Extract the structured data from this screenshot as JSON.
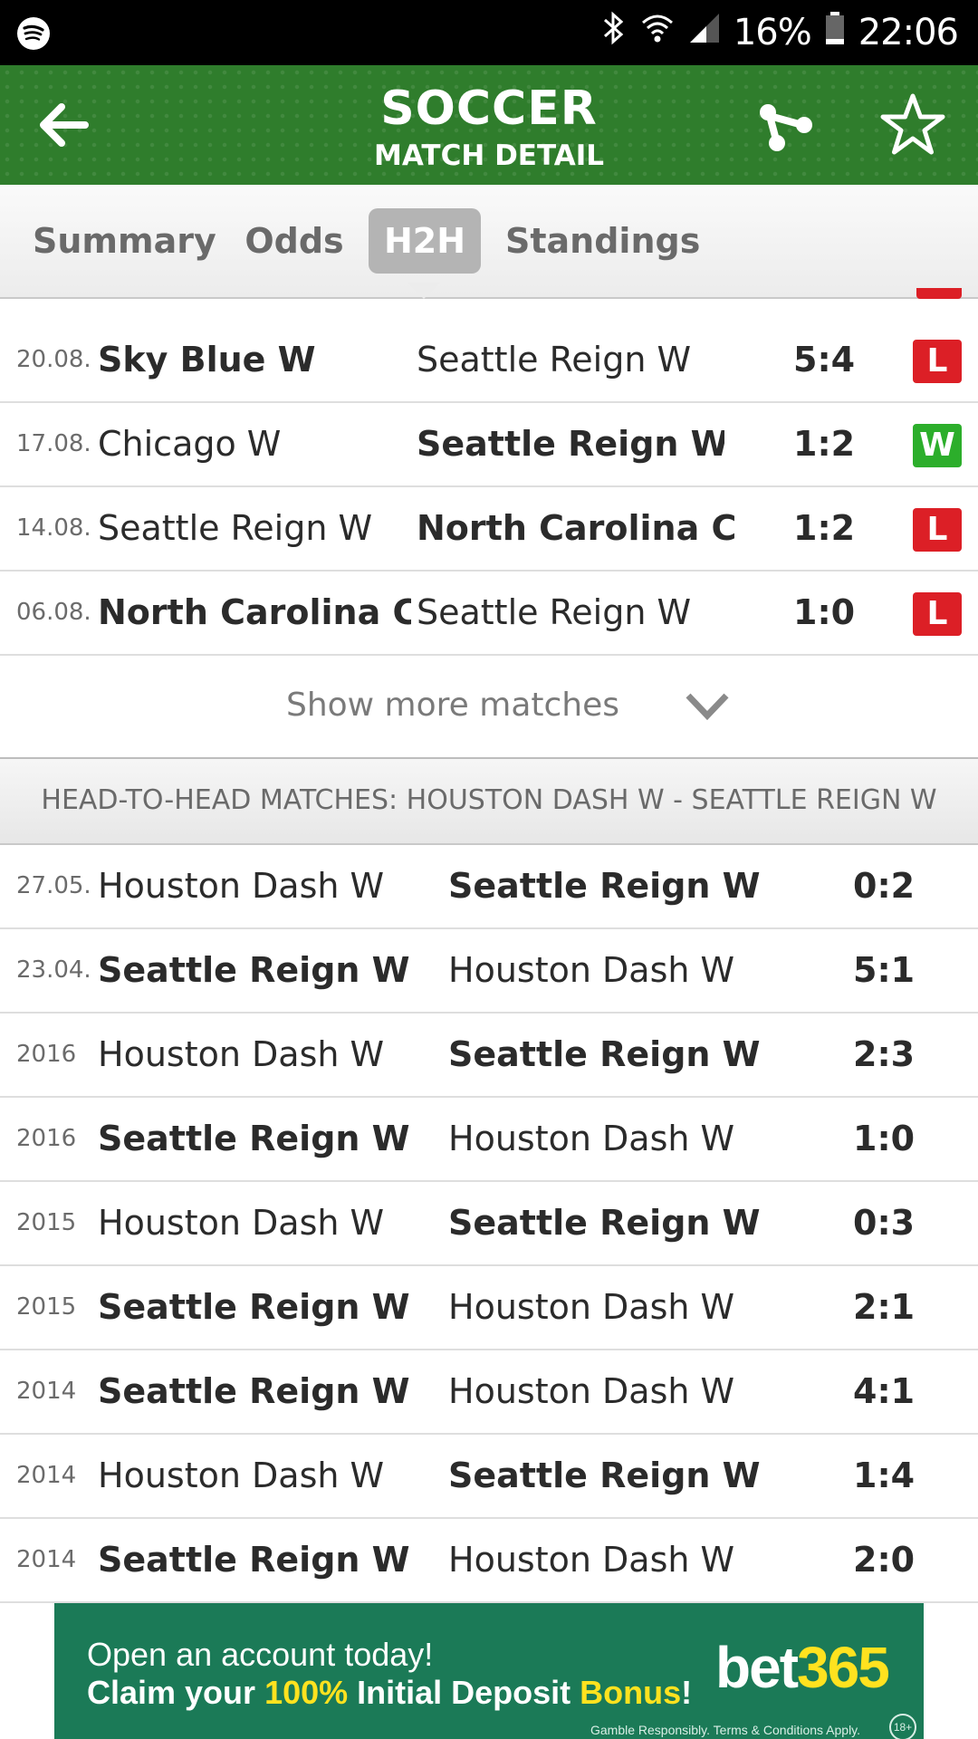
{
  "status_bar": {
    "battery": "16%",
    "time": "22:06"
  },
  "header": {
    "title": "SOCCER",
    "subtitle": "MATCH DETAIL"
  },
  "tabs": [
    {
      "label": "Summary",
      "active": false
    },
    {
      "label": "Odds",
      "active": false
    },
    {
      "label": "H2H",
      "active": true
    },
    {
      "label": "Standings",
      "active": false
    }
  ],
  "last_matches": [
    {
      "date": "20.08.",
      "home": "Sky Blue W",
      "away": "Seattle Reign W",
      "score": "5:4",
      "result": "L"
    },
    {
      "date": "17.08.",
      "home": "Chicago W",
      "away": "Seattle Reign W",
      "score": "1:2",
      "result": "W"
    },
    {
      "date": "14.08.",
      "home": "Seattle Reign W",
      "away": "North Carolina C...",
      "score": "1:2",
      "result": "L"
    },
    {
      "date": "06.08.",
      "home": "North Carolina C...",
      "away": "Seattle Reign W",
      "score": "1:0",
      "result": "L"
    }
  ],
  "show_more": {
    "label": "Show more matches"
  },
  "h2h_section": {
    "title": "HEAD-TO-HEAD MATCHES: HOUSTON DASH W - SEATTLE REIGN W"
  },
  "h2h_matches": [
    {
      "date": "27.05.",
      "home": "Houston Dash W",
      "away": "Seattle Reign W",
      "score": "0:2"
    },
    {
      "date": "23.04.",
      "home": "Seattle Reign W",
      "away": "Houston Dash W",
      "score": "5:1"
    },
    {
      "date": "2016",
      "home": "Houston Dash W",
      "away": "Seattle Reign W",
      "score": "2:3"
    },
    {
      "date": "2016",
      "home": "Seattle Reign W",
      "away": "Houston Dash W",
      "score": "1:0"
    },
    {
      "date": "2015",
      "home": "Houston Dash W",
      "away": "Seattle Reign W",
      "score": "0:3"
    },
    {
      "date": "2015",
      "home": "Seattle Reign W",
      "away": "Houston Dash W",
      "score": "2:1"
    },
    {
      "date": "2014",
      "home": "Seattle Reign W",
      "away": "Houston Dash W",
      "score": "4:1"
    },
    {
      "date": "2014",
      "home": "Houston Dash W",
      "away": "Seattle Reign W",
      "score": "1:4"
    },
    {
      "date": "2014",
      "home": "Seattle Reign W",
      "away": "Houston Dash W",
      "score": "2:0"
    }
  ],
  "ad": {
    "line1": "Open an account today!",
    "line2_a": "Claim your ",
    "line2_b": "100%",
    "line2_c": " Initial Deposit ",
    "line2_d": "Bonus",
    "line2_e": "!",
    "brand_a": "bet",
    "brand_b": "365",
    "legal": "Gamble Responsibly. Terms & Conditions Apply.",
    "age": "18+",
    "highlight_color": "#ffe21f",
    "background_color": "#1b7a57"
  }
}
